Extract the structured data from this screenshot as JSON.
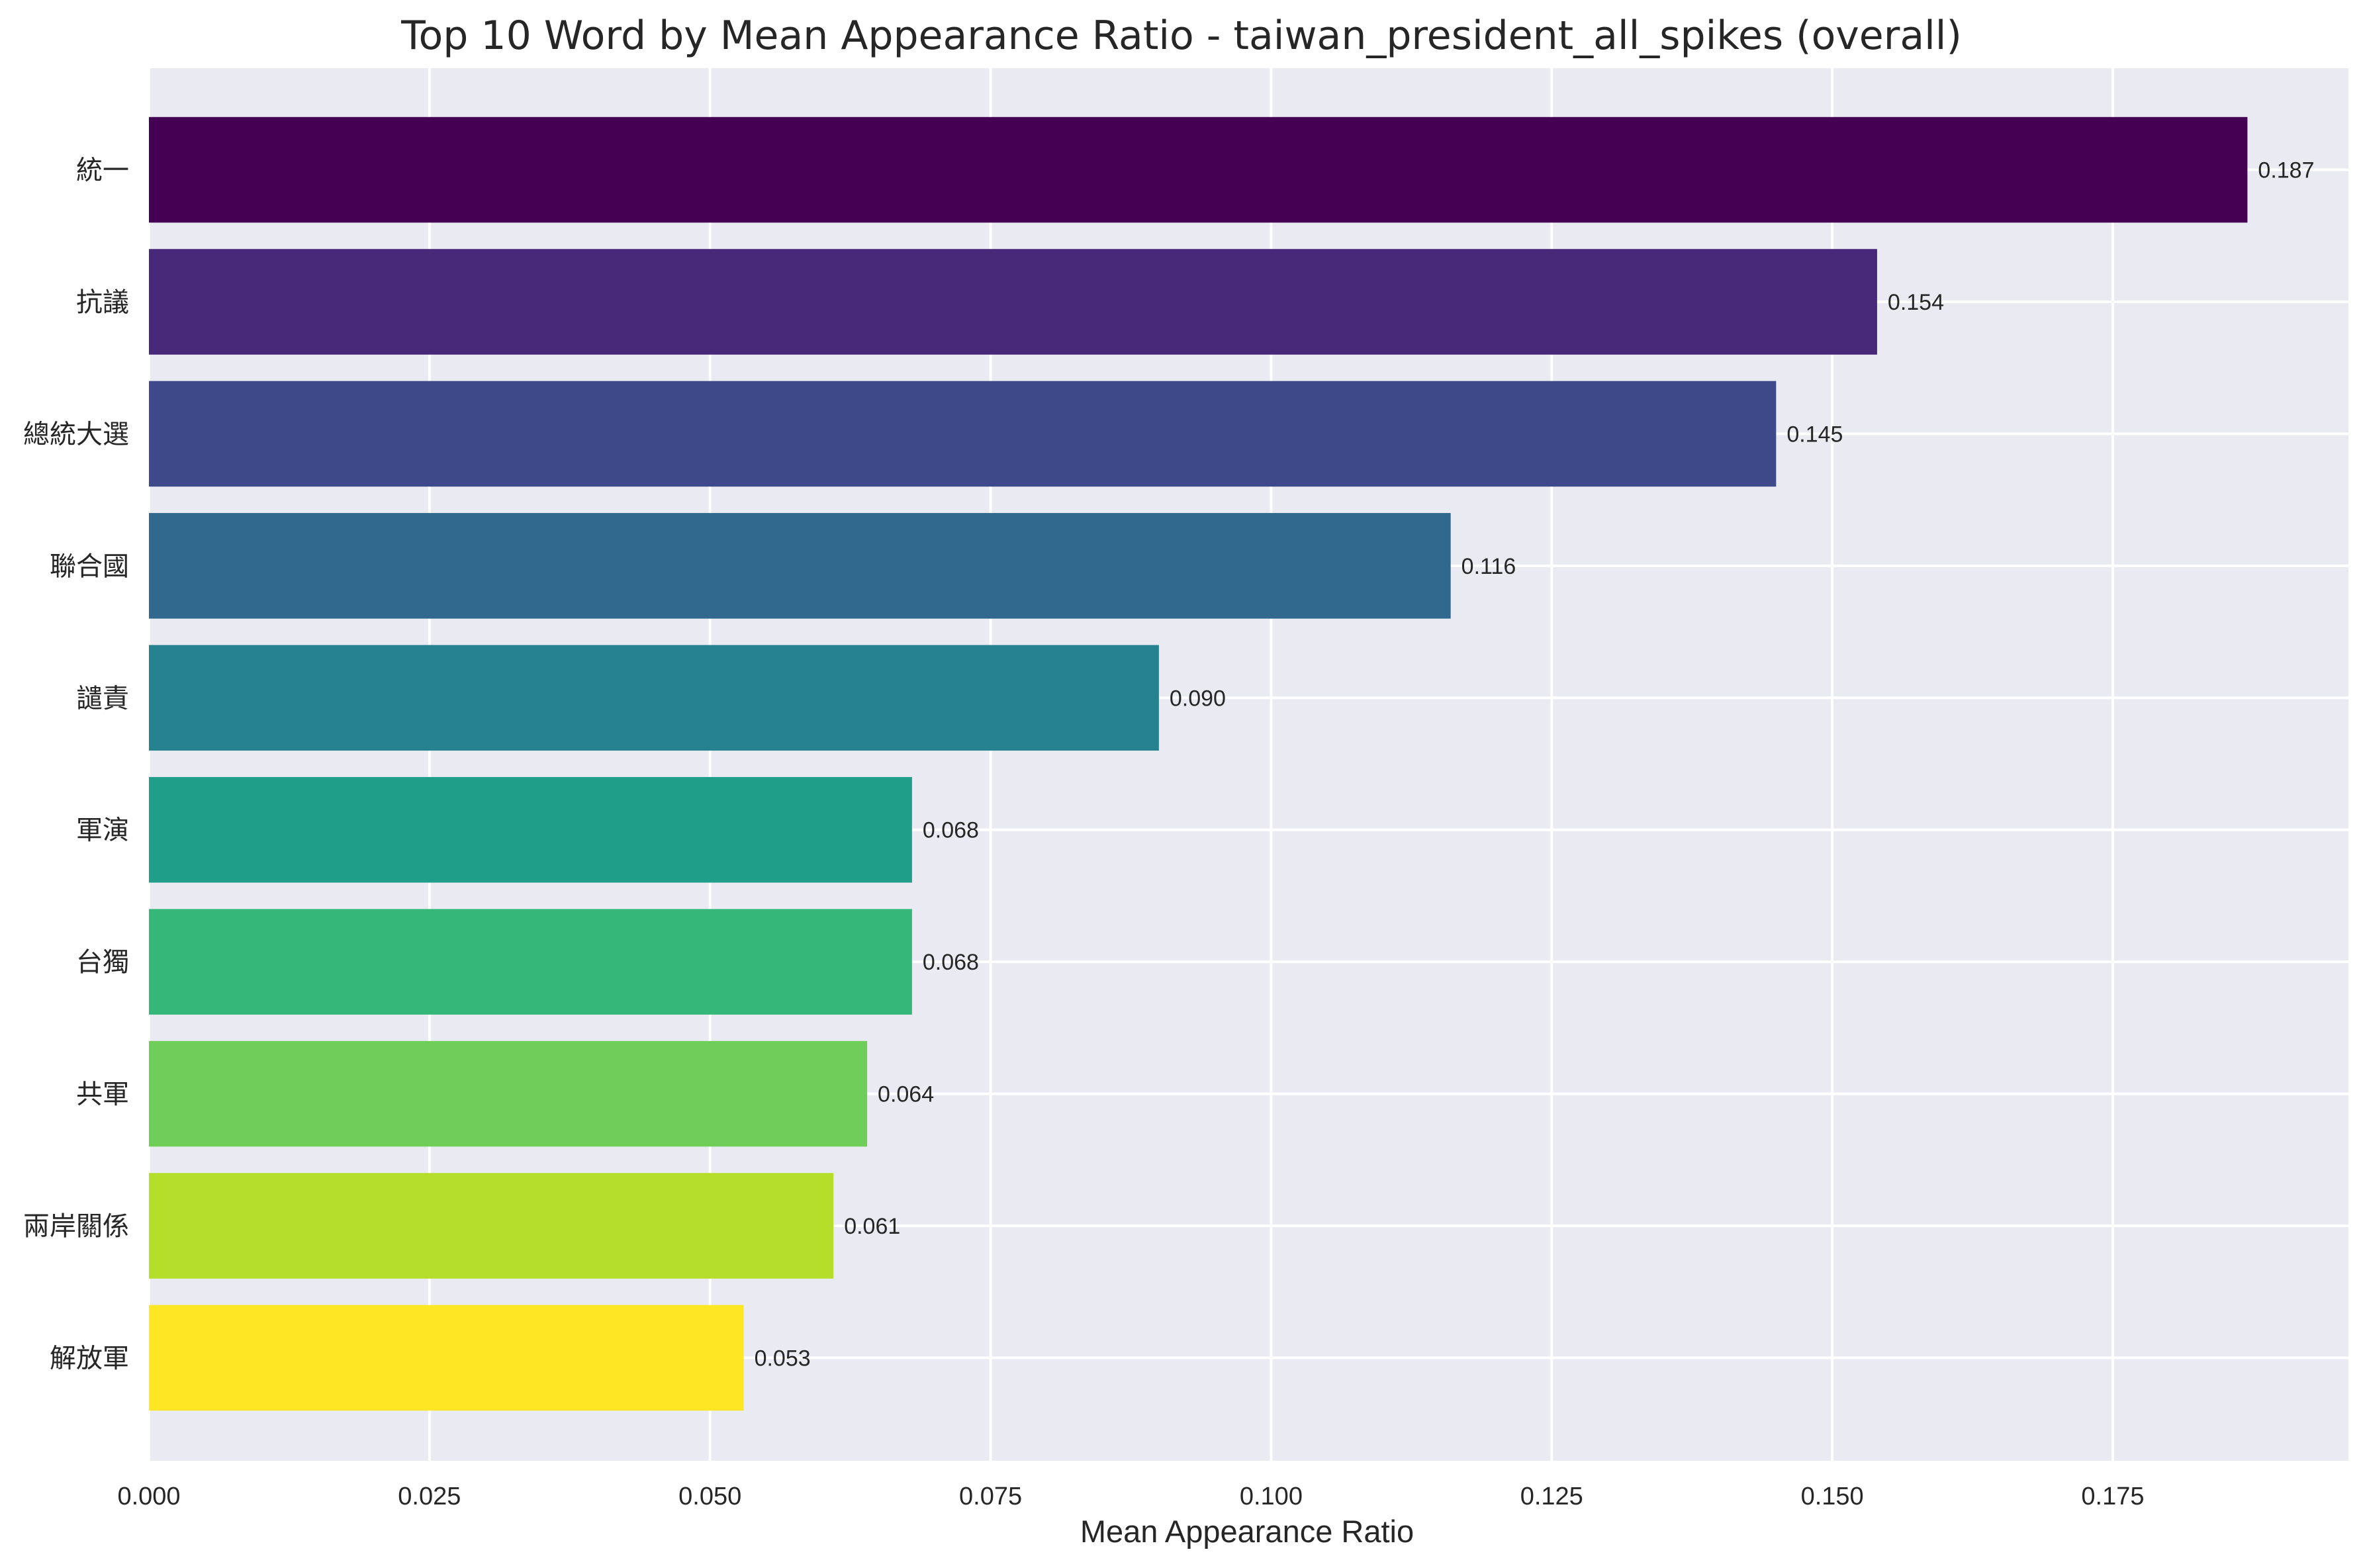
{
  "chart_data": {
    "type": "bar",
    "orientation": "horizontal",
    "title": "Top 10 Word by Mean Appearance Ratio - taiwan_president_all_spikes (overall)",
    "xlabel": "Mean Appearance Ratio",
    "ylabel": "",
    "xlim": [
      0,
      0.196
    ],
    "xticks": [
      0.0,
      0.025,
      0.05,
      0.075,
      0.1,
      0.125,
      0.15,
      0.175
    ],
    "xtick_labels": [
      "0.000",
      "0.025",
      "0.050",
      "0.075",
      "0.100",
      "0.125",
      "0.150",
      "0.175"
    ],
    "grid": true,
    "categories": [
      "統一",
      "抗議",
      "總統大選",
      "聯合國",
      "譴責",
      "軍演",
      "台獨",
      "共軍",
      "兩岸關係",
      "解放軍"
    ],
    "values": [
      0.187,
      0.154,
      0.145,
      0.116,
      0.09,
      0.068,
      0.068,
      0.064,
      0.061,
      0.053
    ],
    "value_labels": [
      "0.187",
      "0.154",
      "0.145",
      "0.116",
      "0.090",
      "0.068",
      "0.068",
      "0.064",
      "0.061",
      "0.053"
    ],
    "colors": [
      "#440154",
      "#482878",
      "#3e4989",
      "#31688e",
      "#26828e",
      "#1f9e89",
      "#35b779",
      "#6ece58",
      "#b5de2b",
      "#fde725"
    ],
    "background": "#eaeaf2",
    "grid_color": "#ffffff"
  }
}
